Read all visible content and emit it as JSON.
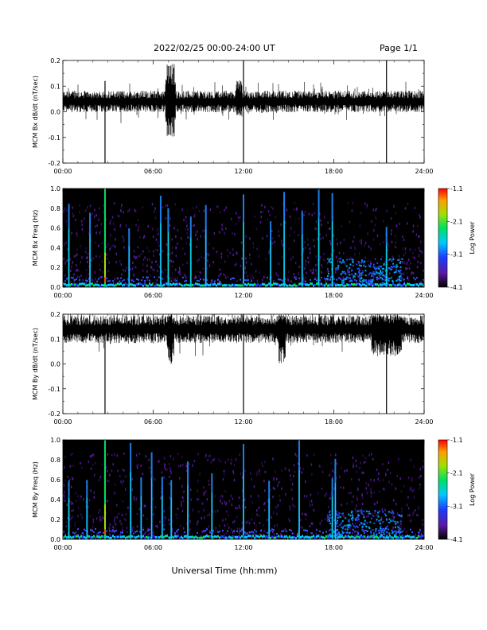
{
  "header": {
    "title": "2022/02/25  00:00-24:00 UT",
    "page": "Page 1/1"
  },
  "footer": {
    "xlabel": "Universal Time (hh:mm)"
  },
  "colors": {
    "trace": "#000000",
    "spectrogram_background": "#000000",
    "colorbar_stops": [
      "#000000",
      "#5a1aa0",
      "#1e3cff",
      "#00c8ff",
      "#00e060",
      "#a0e000",
      "#ffa000",
      "#ff0000"
    ]
  },
  "chart_data": [
    {
      "type": "line",
      "ylabel": "MCM Bx dB/dt (nT/sec)",
      "xlim": [
        0,
        24
      ],
      "ylim": [
        -0.2,
        0.2
      ],
      "x_ticks": [
        "00:00",
        "06:00",
        "12:00",
        "18:00",
        "24:00"
      ],
      "y_ticks": [
        "-0.2",
        "-0.1",
        "0.0",
        "0.1",
        "0.2"
      ],
      "baseline": 0.04,
      "noise_amplitude": 0.03,
      "spikes": [
        {
          "hour": 2.8,
          "min": -0.2,
          "max": 0.12
        },
        {
          "hour": 12.0,
          "min": -0.2,
          "max": 0.2
        },
        {
          "hour": 21.5,
          "min": -0.2,
          "max": 0.2
        }
      ],
      "bursts": [
        {
          "hour_start": 6.8,
          "hour_end": 7.5,
          "min": -0.1,
          "max": 0.19
        },
        {
          "hour_start": 11.5,
          "hour_end": 11.9,
          "min": -0.02,
          "max": 0.13
        }
      ]
    },
    {
      "type": "heatmap",
      "ylabel": "MCM Bx Freq (Hz)",
      "colorbar_label": "Log Power",
      "xlim": [
        0,
        24
      ],
      "ylim": [
        0.0,
        1.0
      ],
      "x_ticks": [
        "00:00",
        "06:00",
        "12:00",
        "18:00",
        "24:00"
      ],
      "y_ticks": [
        "0.0",
        "0.2",
        "0.4",
        "0.6",
        "0.8",
        "1.0"
      ],
      "colorbar_ticks": [
        "-1.1",
        "-2.1",
        "-3.1",
        "-4.1"
      ],
      "zlim": [
        -4.1,
        -1.1
      ],
      "vertical_bands": [
        0.4,
        1.8,
        2.8,
        4.4,
        6.5,
        7.0,
        8.5,
        9.5,
        12.0,
        13.8,
        14.7,
        15.9,
        17.0,
        17.9,
        21.5
      ],
      "strongest_band": 2.8
    },
    {
      "type": "line",
      "ylabel": "MCM By dB/dt (nT/sec)",
      "xlim": [
        0,
        24
      ],
      "ylim": [
        -0.2,
        0.2
      ],
      "x_ticks": [
        "00:00",
        "06:00",
        "12:00",
        "18:00",
        "24:00"
      ],
      "y_ticks": [
        "-0.2",
        "-0.1",
        "0.0",
        "0.1",
        "0.2"
      ],
      "baseline": 0.14,
      "noise_amplitude": 0.04,
      "spikes": [
        {
          "hour": 2.8,
          "min": -0.2,
          "max": 0.18
        },
        {
          "hour": 12.0,
          "min": -0.2,
          "max": 0.2
        },
        {
          "hour": 21.5,
          "min": -0.2,
          "max": 0.15
        }
      ],
      "bursts": [
        {
          "hour_start": 6.9,
          "hour_end": 7.4,
          "min": 0.0,
          "max": 0.2
        },
        {
          "hour_start": 14.3,
          "hour_end": 14.8,
          "min": 0.0,
          "max": 0.2
        },
        {
          "hour_start": 20.5,
          "hour_end": 22.5,
          "min": 0.03,
          "max": 0.2
        }
      ]
    },
    {
      "type": "heatmap",
      "ylabel": "MCM By Freq (Hz)",
      "colorbar_label": "Log Power",
      "xlim": [
        0,
        24
      ],
      "ylim": [
        0.0,
        1.0
      ],
      "x_ticks": [
        "00:00",
        "06:00",
        "12:00",
        "18:00",
        "24:00"
      ],
      "y_ticks": [
        "0.0",
        "0.2",
        "0.4",
        "0.6",
        "0.8",
        "1.0"
      ],
      "colorbar_ticks": [
        "-1.1",
        "-2.1",
        "-3.1",
        "-4.1"
      ],
      "zlim": [
        -4.1,
        -1.1
      ],
      "vertical_bands": [
        0.4,
        1.6,
        2.8,
        4.5,
        5.2,
        5.9,
        6.6,
        7.2,
        8.3,
        9.9,
        12.0,
        13.7,
        15.7,
        17.9,
        18.1
      ],
      "strongest_band": 2.8
    }
  ]
}
